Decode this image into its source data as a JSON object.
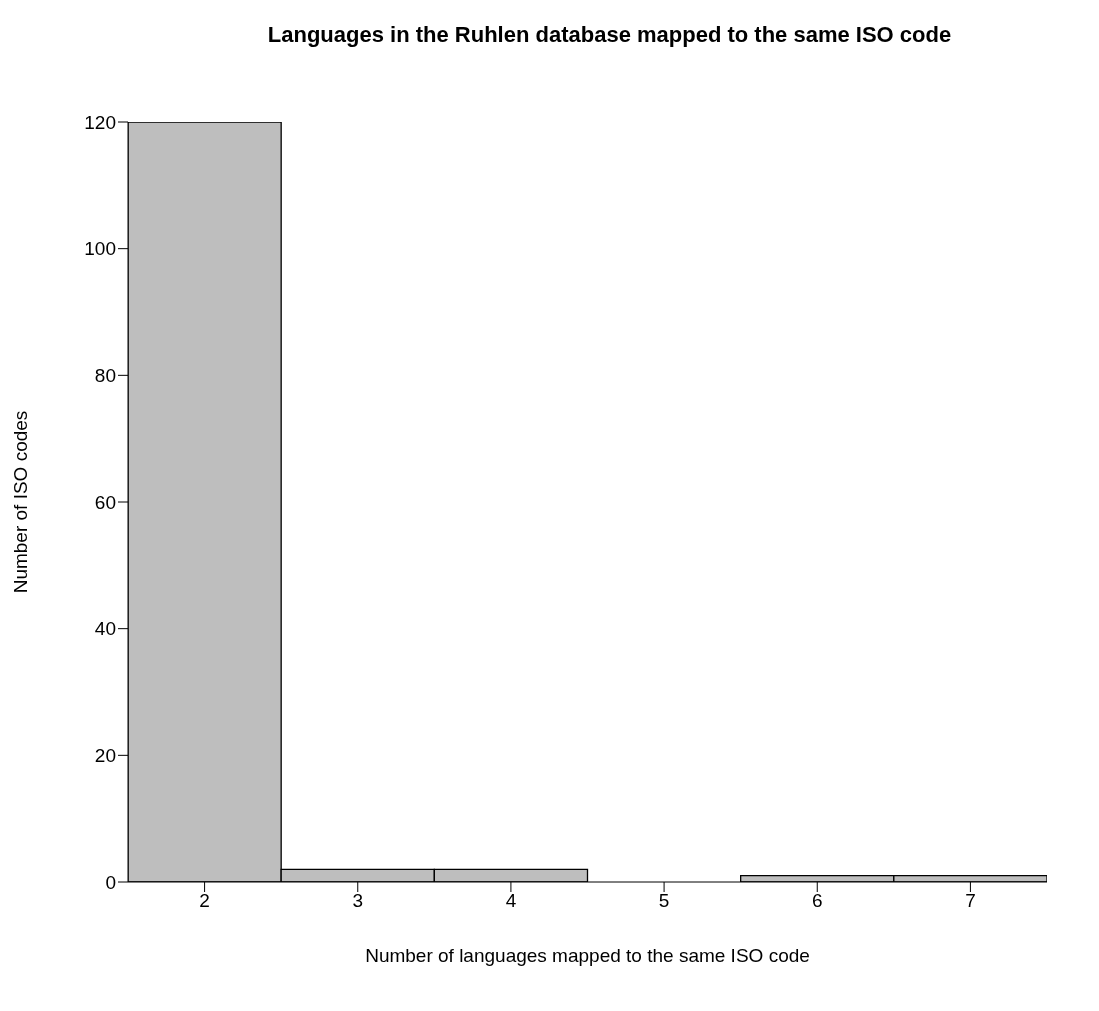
{
  "chart_data": {
    "type": "histogram",
    "title": "Languages in the Ruhlen database mapped to the same ISO code",
    "xlabel": "Number of languages mapped to the same ISO code",
    "ylabel": "Number of ISO codes",
    "bins": [
      1.5,
      2.5,
      3.5,
      4.5,
      5.5,
      6.5,
      7.5
    ],
    "values": [
      120,
      2,
      2,
      0,
      1,
      1
    ],
    "color": "#bebebe",
    "xlim": [
      1.5,
      7.5
    ],
    "xticks": [
      2,
      3,
      4,
      5,
      6,
      7
    ],
    "ylim": [
      0,
      120
    ],
    "yticks": [
      0,
      20,
      40,
      60,
      80,
      100,
      120
    ],
    "grid": false
  }
}
